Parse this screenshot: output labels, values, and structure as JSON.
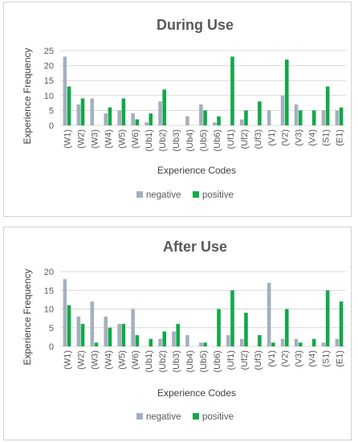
{
  "chart_data": [
    {
      "type": "bar",
      "title": "During Use",
      "xlabel": "Experience Codes",
      "ylabel": "Experience Frequency",
      "ylim": [
        0,
        25
      ],
      "yticks": [
        "0",
        "5",
        "10",
        "15",
        "20",
        "25"
      ],
      "grid": true,
      "legend_position": "bottom",
      "categories": [
        "(W1)",
        "(W2)",
        "(W3)",
        "(W4)",
        "(W5)",
        "(W6)",
        "(Ub1)",
        "(Ub2)",
        "(Ub3)",
        "(Ub4)",
        "(Ub5)",
        "(Ub6)",
        "(Uf1)",
        "(Uf2)",
        "(Uf3)",
        "(V1)",
        "(V2)",
        "(V3)",
        "(V4)",
        "(S1)",
        "(E1)"
      ],
      "series": [
        {
          "name": "negative",
          "color": "#a5afbd",
          "values": [
            23,
            7,
            9,
            4,
            5,
            4,
            1,
            8,
            0,
            3,
            7,
            1,
            0,
            2,
            0,
            5,
            10,
            7,
            0,
            5,
            5
          ]
        },
        {
          "name": "positive",
          "color": "#12a84a",
          "values": [
            13,
            9,
            0,
            6,
            9,
            2,
            4,
            12,
            0,
            0,
            5,
            3,
            23,
            5,
            8,
            0,
            22,
            5,
            5,
            13,
            6
          ]
        }
      ]
    },
    {
      "type": "bar",
      "title": "After Use",
      "xlabel": "Experience Codes",
      "ylabel": "Experience Frequency",
      "ylim": [
        0,
        20
      ],
      "yticks": [
        "0",
        "5",
        "10",
        "15",
        "20"
      ],
      "grid": true,
      "legend_position": "bottom",
      "categories": [
        "(W1)",
        "(W2)",
        "(W3)",
        "(W4)",
        "(W5)",
        "(W6)",
        "(Ub1)",
        "(Ub2)",
        "(Ub3)",
        "(Ub4)",
        "(Ub5)",
        "(Ub6)",
        "(Uf1)",
        "(Uf2)",
        "(Uf3)",
        "(V1)",
        "(V2)",
        "(V3)",
        "(V4)",
        "(S1)",
        "(E1)"
      ],
      "series": [
        {
          "name": "negative",
          "color": "#a5afbd",
          "values": [
            18,
            8,
            12,
            8,
            6,
            10,
            0,
            2,
            4,
            3,
            1,
            0,
            3,
            2,
            0,
            17,
            2,
            2,
            0,
            1,
            2
          ]
        },
        {
          "name": "positive",
          "color": "#12a84a",
          "values": [
            11,
            6,
            1,
            5,
            6,
            3,
            2,
            4,
            6,
            0,
            1,
            10,
            15,
            9,
            3,
            1,
            10,
            1,
            2,
            15,
            12
          ]
        }
      ]
    }
  ]
}
